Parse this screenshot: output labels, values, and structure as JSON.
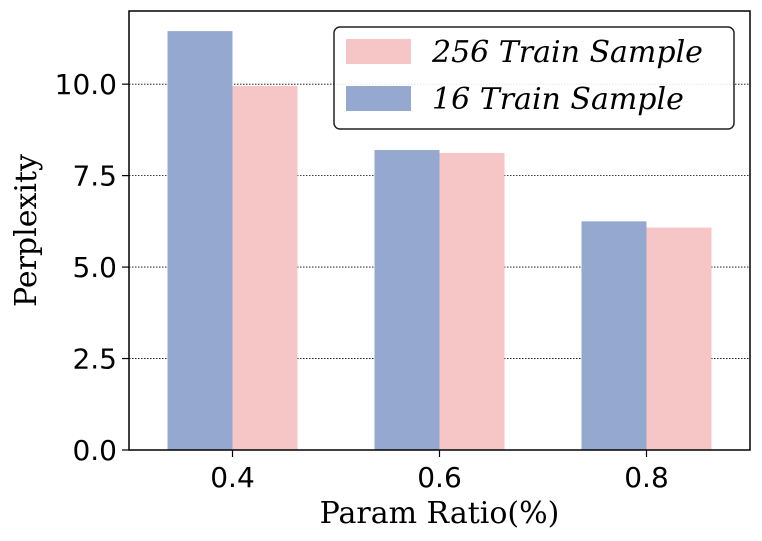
{
  "chart_data": {
    "type": "bar",
    "title": "",
    "xlabel": "Param Ratio(%)",
    "ylabel": "Perplexity",
    "categories": [
      "0.4",
      "0.6",
      "0.8"
    ],
    "series": [
      {
        "name": "16 Train Sample",
        "values": [
          11.45,
          8.2,
          6.25
        ],
        "color": "#94a8d0"
      },
      {
        "name": "256 Train Sample",
        "values": [
          9.95,
          8.12,
          6.08
        ],
        "color": "#f6c6c7"
      }
    ],
    "legend_order": [
      "256 Train Sample",
      "16 Train Sample"
    ],
    "ylim": [
      0,
      12
    ],
    "yticks": [
      "0.0",
      "2.5",
      "5.0",
      "7.5",
      "10.0"
    ],
    "ytick_values": [
      0,
      2.5,
      5,
      7.5,
      10
    ],
    "grid": "y-dotted",
    "legend_position": "top-right"
  }
}
